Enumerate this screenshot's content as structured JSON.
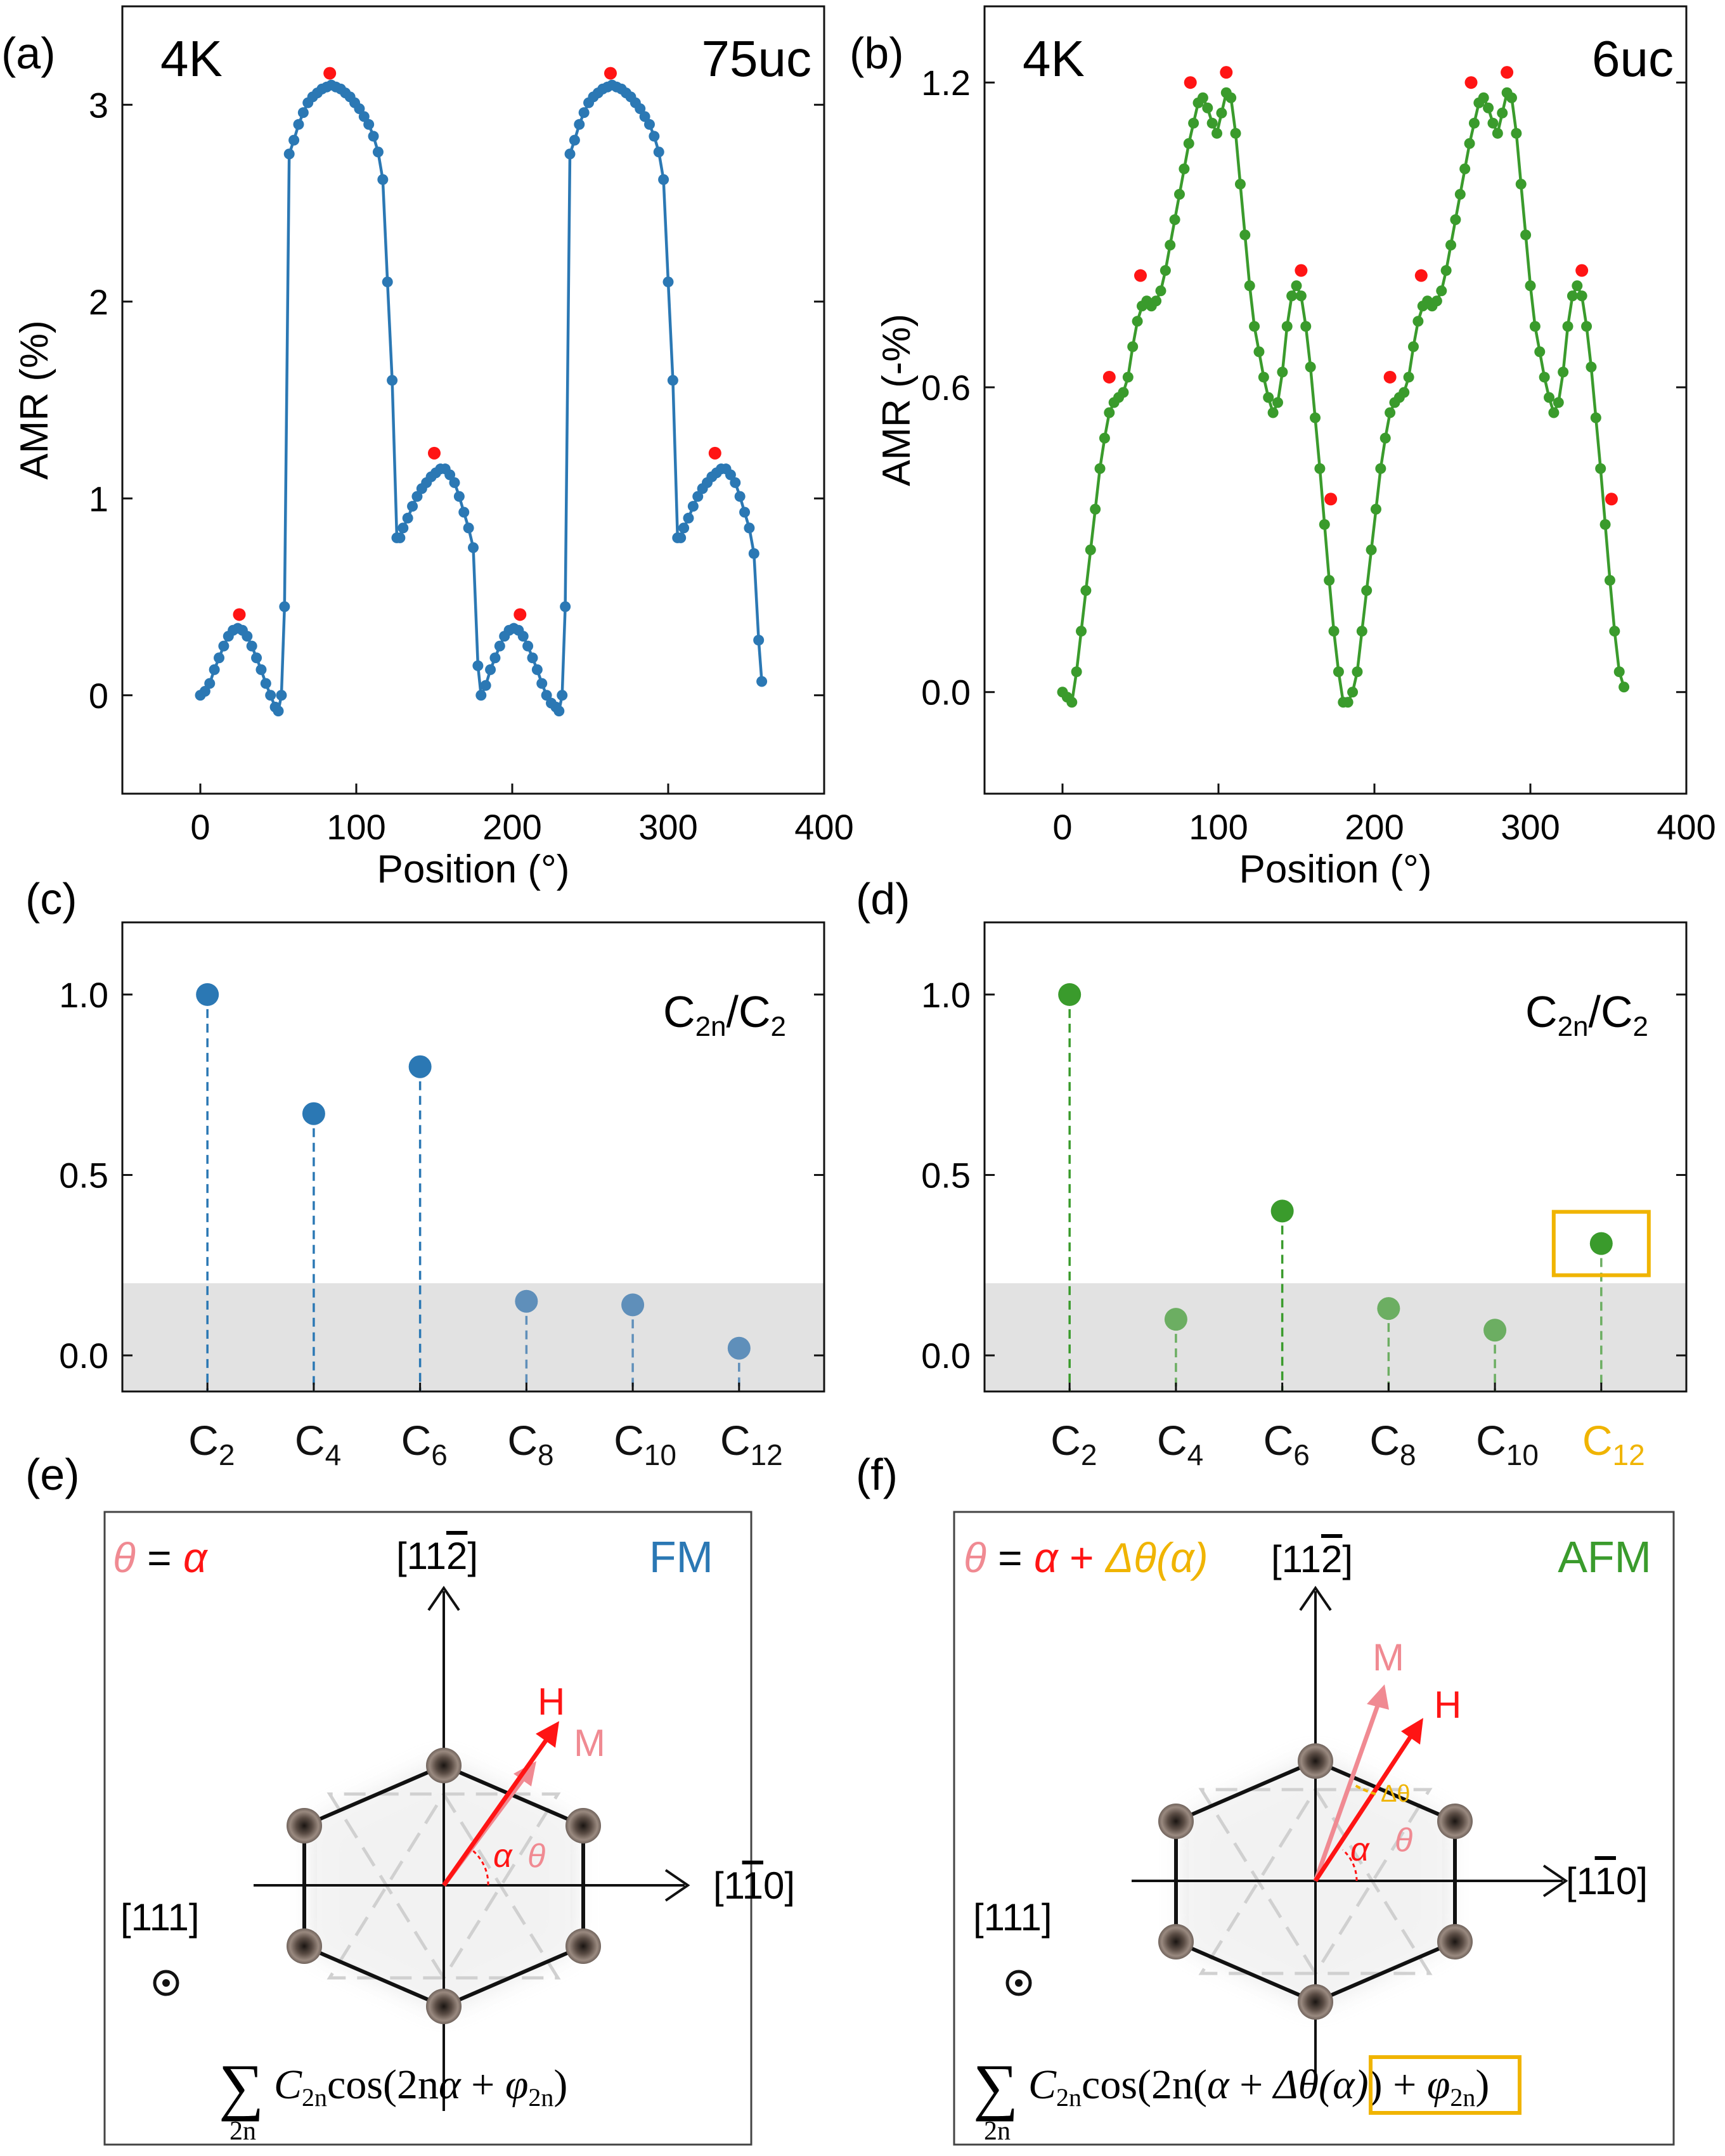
{
  "colors": {
    "fm_blue": "#2b78b4",
    "fm_blue_light": "#5f8fba",
    "afm_green": "#3a9b2c",
    "afm_green_light": "#6cae62",
    "marker_red": "#ff1414",
    "highlight_orange": "#f0b400",
    "shade_gray": "#e2e2e2",
    "m_pink": "#f08a92",
    "atom_dark": "#2a2320"
  },
  "panel_labels": [
    "(a)",
    "(b)",
    "(c)",
    "(d)",
    "(e)",
    "(f)"
  ],
  "chart_data": [
    {
      "id": "a",
      "type": "line",
      "temperature_label": "4K",
      "thickness_label": "75uc",
      "xlabel": "Position (°)",
      "ylabel": "AMR (%)",
      "xlim": [
        -50,
        400
      ],
      "ylim": [
        -0.5,
        3.5
      ],
      "xticks": [
        0,
        100,
        200,
        300,
        400
      ],
      "yticks": [
        0,
        1,
        2,
        3
      ],
      "series": [
        {
          "name": "AMR 75uc",
          "color": "#2b78b4",
          "x": [
            0,
            3,
            6,
            9,
            12,
            15,
            18,
            21,
            24,
            27,
            30,
            33,
            36,
            39,
            42,
            45,
            48,
            50,
            52,
            54,
            57,
            60,
            63,
            66,
            69,
            72,
            75,
            78,
            81,
            84,
            87,
            90,
            93,
            96,
            99,
            102,
            105,
            108,
            111,
            114,
            117,
            120,
            123,
            126,
            128,
            130,
            133,
            136,
            139,
            142,
            145,
            148,
            151,
            154,
            157,
            160,
            163,
            166,
            169,
            172,
            175,
            178,
            180,
            183,
            186,
            189,
            192,
            195,
            198,
            201,
            204,
            207,
            210,
            213,
            216,
            219,
            222,
            225,
            228,
            230,
            232,
            234,
            237,
            240,
            243,
            246,
            249,
            252,
            255,
            258,
            261,
            264,
            267,
            270,
            273,
            276,
            279,
            282,
            285,
            288,
            291,
            294,
            297,
            300,
            303,
            306,
            308,
            310,
            313,
            316,
            319,
            322,
            325,
            328,
            331,
            334,
            337,
            340,
            343,
            346,
            349,
            352,
            355,
            358,
            360
          ],
          "y": [
            0.0,
            0.02,
            0.06,
            0.13,
            0.19,
            0.25,
            0.3,
            0.33,
            0.34,
            0.33,
            0.3,
            0.25,
            0.19,
            0.13,
            0.06,
            0.0,
            -0.06,
            -0.08,
            0.0,
            0.45,
            2.75,
            2.82,
            2.9,
            2.96,
            3.01,
            3.04,
            3.06,
            3.08,
            3.09,
            3.1,
            3.09,
            3.08,
            3.06,
            3.04,
            3.01,
            2.98,
            2.94,
            2.9,
            2.84,
            2.76,
            2.62,
            2.1,
            1.6,
            0.8,
            0.8,
            0.85,
            0.9,
            0.96,
            1.01,
            1.05,
            1.08,
            1.11,
            1.13,
            1.15,
            1.15,
            1.12,
            1.08,
            1.01,
            0.93,
            0.85,
            0.75,
            0.15,
            0.0,
            0.05,
            0.13,
            0.19,
            0.25,
            0.3,
            0.33,
            0.34,
            0.33,
            0.3,
            0.25,
            0.19,
            0.13,
            0.06,
            0.0,
            -0.04,
            -0.06,
            -0.08,
            0.0,
            0.45,
            2.75,
            2.82,
            2.9,
            2.96,
            3.01,
            3.04,
            3.06,
            3.08,
            3.09,
            3.1,
            3.09,
            3.08,
            3.06,
            3.04,
            3.01,
            2.98,
            2.94,
            2.9,
            2.84,
            2.76,
            2.62,
            2.1,
            1.6,
            0.8,
            0.8,
            0.85,
            0.9,
            0.96,
            1.01,
            1.05,
            1.08,
            1.11,
            1.13,
            1.15,
            1.15,
            1.12,
            1.08,
            1.01,
            0.93,
            0.85,
            0.72,
            0.28,
            0.07
          ]
        }
      ],
      "peaks": {
        "color": "#ff1414",
        "x": [
          25,
          83,
          150,
          205,
          263,
          330
        ],
        "y": [
          0.41,
          3.16,
          1.23,
          0.41,
          3.16,
          1.23
        ]
      }
    },
    {
      "id": "b",
      "type": "line",
      "temperature_label": "4K",
      "thickness_label": "6uc",
      "xlabel": "Position (°)",
      "ylabel": "AMR (-%)",
      "xlim": [
        -50,
        400
      ],
      "ylim": [
        -0.2,
        1.35
      ],
      "xticks": [
        0,
        100,
        200,
        300,
        400
      ],
      "yticks": [
        0.0,
        0.6,
        1.2
      ],
      "series": [
        {
          "name": "AMR 6uc",
          "color": "#3a9b2c",
          "x": [
            0,
            3,
            6,
            9,
            12,
            15,
            18,
            21,
            24,
            27,
            30,
            33,
            36,
            39,
            42,
            45,
            48,
            51,
            54,
            57,
            60,
            63,
            66,
            69,
            72,
            75,
            78,
            81,
            84,
            87,
            90,
            93,
            96,
            99,
            102,
            105,
            108,
            111,
            114,
            117,
            120,
            123,
            126,
            129,
            132,
            135,
            138,
            141,
            144,
            147,
            150,
            153,
            156,
            159,
            162,
            165,
            168,
            171,
            174,
            177,
            180,
            183,
            186,
            189,
            192,
            195,
            198,
            201,
            204,
            207,
            210,
            213,
            216,
            219,
            222,
            225,
            228,
            231,
            234,
            237,
            240,
            243,
            246,
            249,
            252,
            255,
            258,
            261,
            264,
            267,
            270,
            273,
            276,
            279,
            282,
            285,
            288,
            291,
            294,
            297,
            300,
            303,
            306,
            309,
            312,
            315,
            318,
            321,
            324,
            327,
            330,
            333,
            336,
            339,
            342,
            345,
            348,
            351,
            354,
            357,
            360
          ],
          "y": [
            0.0,
            -0.01,
            -0.02,
            0.04,
            0.12,
            0.2,
            0.28,
            0.36,
            0.44,
            0.5,
            0.55,
            0.57,
            0.58,
            0.59,
            0.62,
            0.68,
            0.73,
            0.76,
            0.77,
            0.76,
            0.77,
            0.79,
            0.83,
            0.88,
            0.93,
            0.98,
            1.03,
            1.08,
            1.12,
            1.16,
            1.17,
            1.15,
            1.12,
            1.1,
            1.14,
            1.18,
            1.17,
            1.1,
            1.0,
            0.9,
            0.8,
            0.72,
            0.67,
            0.62,
            0.58,
            0.55,
            0.57,
            0.63,
            0.72,
            0.78,
            0.8,
            0.78,
            0.72,
            0.64,
            0.54,
            0.44,
            0.33,
            0.22,
            0.12,
            0.04,
            -0.02,
            -0.02,
            0.0,
            0.04,
            0.12,
            0.2,
            0.28,
            0.36,
            0.44,
            0.5,
            0.55,
            0.57,
            0.58,
            0.59,
            0.62,
            0.68,
            0.73,
            0.76,
            0.77,
            0.76,
            0.77,
            0.79,
            0.83,
            0.88,
            0.93,
            0.98,
            1.03,
            1.08,
            1.12,
            1.16,
            1.17,
            1.15,
            1.12,
            1.1,
            1.14,
            1.18,
            1.17,
            1.1,
            1.0,
            0.9,
            0.8,
            0.72,
            0.67,
            0.62,
            0.58,
            0.55,
            0.57,
            0.63,
            0.72,
            0.78,
            0.8,
            0.78,
            0.72,
            0.64,
            0.54,
            0.44,
            0.33,
            0.22,
            0.12,
            0.04,
            0.01
          ]
        }
      ],
      "peaks": {
        "color": "#ff1414",
        "x": [
          30,
          50,
          82,
          105,
          153,
          172,
          210,
          230,
          262,
          285,
          333,
          352
        ],
        "y": [
          0.62,
          0.82,
          1.2,
          1.22,
          0.83,
          0.38,
          0.62,
          0.82,
          1.2,
          1.22,
          0.83,
          0.38
        ]
      }
    },
    {
      "id": "c",
      "type": "scatter",
      "label": "C2n/C2",
      "categories": [
        "C2",
        "C4",
        "C6",
        "C8",
        "C10",
        "C12"
      ],
      "category_main": [
        "C",
        "C",
        "C",
        "C",
        "C",
        "C"
      ],
      "category_sub": [
        "2",
        "4",
        "6",
        "8",
        "10",
        "12"
      ],
      "values": [
        1.0,
        0.67,
        0.8,
        0.15,
        0.14,
        0.02
      ],
      "ylim": [
        -0.1,
        1.2
      ],
      "yticks": [
        0.0,
        0.5,
        1.0
      ],
      "shaded_band": [
        -0.1,
        0.2
      ],
      "color": "#2b78b4",
      "highlight_index": null
    },
    {
      "id": "d",
      "type": "scatter",
      "label": "C2n/C2",
      "categories": [
        "C2",
        "C4",
        "C6",
        "C8",
        "C10",
        "C12"
      ],
      "category_main": [
        "C",
        "C",
        "C",
        "C",
        "C",
        "C"
      ],
      "category_sub": [
        "2",
        "4",
        "6",
        "8",
        "10",
        "12"
      ],
      "values": [
        1.0,
        0.1,
        0.4,
        0.13,
        0.07,
        0.31
      ],
      "ylim": [
        -0.1,
        1.2
      ],
      "yticks": [
        0.0,
        0.5,
        1.0
      ],
      "shaded_band": [
        -0.1,
        0.2
      ],
      "color": "#3a9b2c",
      "highlight_index": 5
    }
  ],
  "label_texts": {
    "c2n": "C",
    "c2n_sub": "2n",
    "slash": "/C",
    "c2_sub": "2"
  },
  "diagrams": {
    "e": {
      "mode": "FM",
      "eq_theta": "θ",
      "eq_equals": " = ",
      "eq_alpha": "α",
      "axis_up": "[11",
      "axis_up_bar": "2",
      "axis_up_end": "]",
      "axis_right": "[1",
      "axis_right_bar": "1",
      "axis_right_end": "0]",
      "axis_out": "[111]",
      "h_label": "H",
      "m_label": "M",
      "alpha_label": "α",
      "theta_label": "θ",
      "formula": {
        "sum": "∑",
        "under": "2n",
        "c": "C",
        "c_sub": "2n",
        "body": "cos(2n",
        "alpha": "α",
        "plus": " + ",
        "phi": "φ",
        "phi_sub": "2n",
        "close": ")"
      }
    },
    "f": {
      "mode": "AFM",
      "eq_theta": "θ",
      "eq_equals": " = ",
      "eq_alpha": "α",
      "eq_plus": " + ",
      "eq_delta": "Δθ(α)",
      "axis_up": "[11",
      "axis_up_bar": "2",
      "axis_up_end": "]",
      "axis_right": "[1",
      "axis_right_bar": "1",
      "axis_right_end": "0]",
      "axis_out": "[111]",
      "h_label": "H",
      "m_label": "M",
      "alpha_label": "α",
      "theta_label": "θ",
      "delta_label": "Δθ",
      "formula": {
        "sum": "∑",
        "under": "2n",
        "c": "C",
        "c_sub": "2n",
        "body": "cos(2n(",
        "alpha": "α",
        "plus": " + ",
        "delta": "Δθ(α)",
        "close_inner": ")",
        "plus2": " + ",
        "phi": "φ",
        "phi_sub": "2n",
        "close": ")"
      }
    }
  }
}
